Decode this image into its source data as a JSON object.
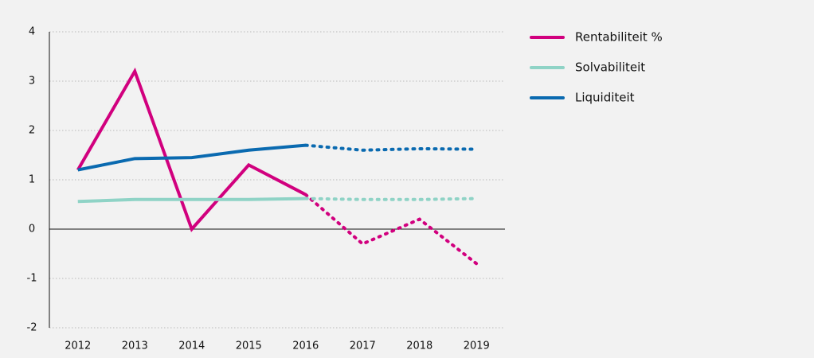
{
  "chart_data": {
    "type": "line",
    "categories": [
      "2012",
      "2013",
      "2014",
      "2015",
      "2016",
      "2017",
      "2018",
      "2019"
    ],
    "series": [
      {
        "name": "Rentabiliteit %",
        "color": "#d1007e",
        "values": [
          1.2,
          3.2,
          0,
          1.3,
          0.7,
          -0.3,
          0.2,
          -0.7
        ]
      },
      {
        "name": "Solvabiliteit",
        "color": "#8fd3c6",
        "values": [
          0.56,
          0.6,
          0.6,
          0.6,
          0.62,
          0.6,
          0.6,
          0.62
        ]
      },
      {
        "name": "Liquiditeit",
        "color": "#0a6ab0",
        "values": [
          1.2,
          1.43,
          1.45,
          1.6,
          1.7,
          1.6,
          1.63,
          1.62
        ]
      }
    ],
    "ylim": [
      -2,
      4
    ],
    "yticks": [
      -2,
      -1,
      0,
      1,
      2,
      3,
      4
    ],
    "grid": true,
    "dotted_from_category": "2016",
    "legend": "right"
  }
}
